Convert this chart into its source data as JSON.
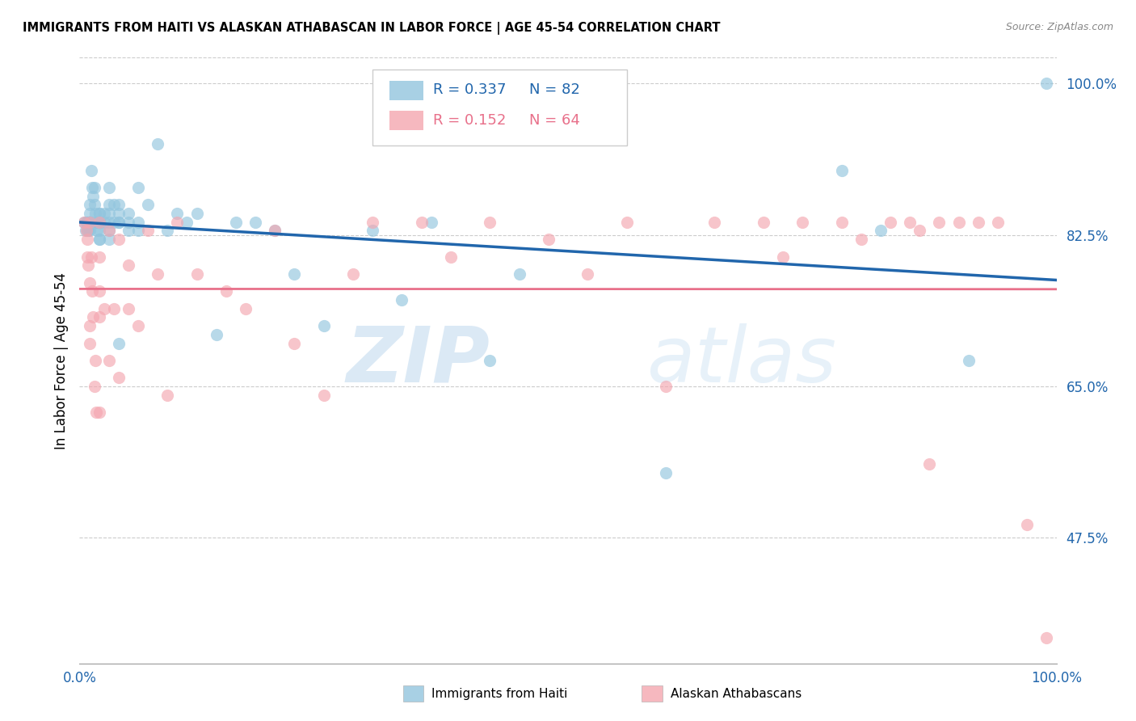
{
  "title": "IMMIGRANTS FROM HAITI VS ALASKAN ATHABASCAN IN LABOR FORCE | AGE 45-54 CORRELATION CHART",
  "source": "Source: ZipAtlas.com",
  "ylabel": "In Labor Force | Age 45-54",
  "r_haiti": 0.337,
  "n_haiti": 82,
  "r_athabascan": 0.152,
  "n_athabascan": 64,
  "haiti_color": "#92c5de",
  "athabascan_color": "#f4a6b0",
  "haiti_line_color": "#2166ac",
  "athabascan_line_color": "#e8708a",
  "legend_label_haiti": "Immigrants from Haiti",
  "legend_label_athabascan": "Alaskan Athabascans",
  "watermark_zip": "ZIP",
  "watermark_atlas": "atlas",
  "background_color": "#ffffff",
  "xlim": [
    0.0,
    1.0
  ],
  "ylim": [
    0.33,
    1.03
  ],
  "ytick_positions": [
    0.475,
    0.65,
    0.825,
    1.0
  ],
  "ytick_labels": [
    "47.5%",
    "65.0%",
    "82.5%",
    "100.0%"
  ],
  "haiti_x": [
    0.005,
    0.006,
    0.007,
    0.007,
    0.008,
    0.008,
    0.009,
    0.009,
    0.009,
    0.01,
    0.01,
    0.01,
    0.01,
    0.01,
    0.01,
    0.01,
    0.01,
    0.01,
    0.01,
    0.01,
    0.01,
    0.012,
    0.013,
    0.014,
    0.015,
    0.015,
    0.016,
    0.017,
    0.018,
    0.019,
    0.02,
    0.02,
    0.02,
    0.02,
    0.02,
    0.02,
    0.02,
    0.02,
    0.02,
    0.025,
    0.025,
    0.03,
    0.03,
    0.03,
    0.03,
    0.03,
    0.03,
    0.035,
    0.035,
    0.04,
    0.04,
    0.04,
    0.04,
    0.04,
    0.05,
    0.05,
    0.05,
    0.06,
    0.06,
    0.06,
    0.07,
    0.08,
    0.09,
    0.1,
    0.11,
    0.12,
    0.14,
    0.16,
    0.18,
    0.2,
    0.22,
    0.25,
    0.3,
    0.33,
    0.36,
    0.42,
    0.45,
    0.6,
    0.78,
    0.82,
    0.91,
    0.99
  ],
  "haiti_y": [
    0.84,
    0.83,
    0.84,
    0.84,
    0.83,
    0.84,
    0.84,
    0.84,
    0.83,
    0.84,
    0.84,
    0.84,
    0.85,
    0.84,
    0.84,
    0.84,
    0.84,
    0.84,
    0.83,
    0.84,
    0.86,
    0.9,
    0.88,
    0.87,
    0.88,
    0.86,
    0.85,
    0.84,
    0.83,
    0.84,
    0.84,
    0.85,
    0.85,
    0.84,
    0.84,
    0.83,
    0.82,
    0.84,
    0.82,
    0.85,
    0.84,
    0.88,
    0.86,
    0.85,
    0.84,
    0.83,
    0.82,
    0.86,
    0.84,
    0.86,
    0.85,
    0.84,
    0.84,
    0.7,
    0.85,
    0.84,
    0.83,
    0.88,
    0.84,
    0.83,
    0.86,
    0.93,
    0.83,
    0.85,
    0.84,
    0.85,
    0.71,
    0.84,
    0.84,
    0.83,
    0.78,
    0.72,
    0.83,
    0.75,
    0.84,
    0.68,
    0.78,
    0.55,
    0.9,
    0.83,
    0.68,
    1.0
  ],
  "athabascan_x": [
    0.005,
    0.007,
    0.008,
    0.008,
    0.009,
    0.01,
    0.01,
    0.01,
    0.01,
    0.012,
    0.013,
    0.014,
    0.015,
    0.016,
    0.017,
    0.02,
    0.02,
    0.02,
    0.02,
    0.02,
    0.025,
    0.03,
    0.03,
    0.035,
    0.04,
    0.04,
    0.05,
    0.05,
    0.06,
    0.07,
    0.08,
    0.09,
    0.1,
    0.12,
    0.15,
    0.17,
    0.2,
    0.22,
    0.25,
    0.28,
    0.3,
    0.35,
    0.38,
    0.42,
    0.48,
    0.52,
    0.56,
    0.6,
    0.65,
    0.7,
    0.72,
    0.74,
    0.78,
    0.8,
    0.83,
    0.85,
    0.86,
    0.87,
    0.88,
    0.9,
    0.92,
    0.94,
    0.97,
    0.99
  ],
  "athabascan_y": [
    0.84,
    0.83,
    0.82,
    0.8,
    0.79,
    0.84,
    0.77,
    0.72,
    0.7,
    0.8,
    0.76,
    0.73,
    0.65,
    0.68,
    0.62,
    0.84,
    0.8,
    0.76,
    0.73,
    0.62,
    0.74,
    0.83,
    0.68,
    0.74,
    0.82,
    0.66,
    0.79,
    0.74,
    0.72,
    0.83,
    0.78,
    0.64,
    0.84,
    0.78,
    0.76,
    0.74,
    0.83,
    0.7,
    0.64,
    0.78,
    0.84,
    0.84,
    0.8,
    0.84,
    0.82,
    0.78,
    0.84,
    0.65,
    0.84,
    0.84,
    0.8,
    0.84,
    0.84,
    0.82,
    0.84,
    0.84,
    0.83,
    0.56,
    0.84,
    0.84,
    0.84,
    0.84,
    0.49,
    0.36
  ]
}
